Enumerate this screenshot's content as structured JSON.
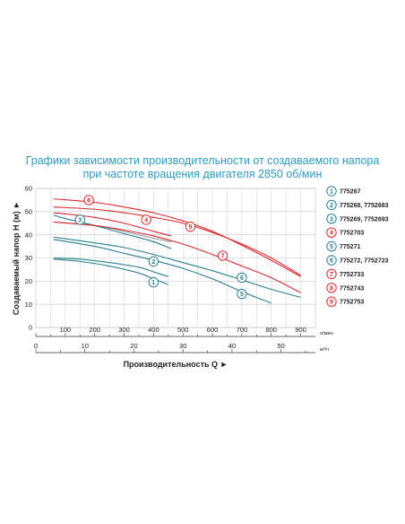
{
  "chart_data": {
    "type": "line",
    "title_lines": [
      "Графики зависимости производительности от создаваемого напора",
      "при частоте вращения двигателя 2850 об/мин"
    ],
    "ylabel": "Создаваемый напор Н (м)",
    "xlabel": "Производительность Q",
    "y_ticks": [
      "0",
      "10",
      "20",
      "30",
      "40",
      "50",
      "60"
    ],
    "ylim": [
      0,
      60
    ],
    "x_ticks_lmin": [
      "100",
      "200",
      "300",
      "400",
      "500",
      "600",
      "700",
      "800",
      "900"
    ],
    "x_unit_lmin": "л/мин",
    "xlim_lmin": [
      0,
      950
    ],
    "x_ticks_m3h": [
      "0",
      "10",
      "20",
      "30",
      "40",
      "50"
    ],
    "x_unit_m3h": "м³/ч",
    "grid": true,
    "legend_position": "right",
    "colors": {
      "red": "#d92a2f",
      "teal": "#2a7f8f",
      "gray": "#888888",
      "title": "#2e9bbf"
    },
    "series": [
      {
        "marker": "1",
        "name": "775267",
        "color": "teal",
        "x": [
          60,
          150,
          250,
          350,
          400,
          450
        ],
        "y": [
          29.5,
          28.5,
          26.5,
          23.5,
          21,
          18.5
        ]
      },
      {
        "marker": "2",
        "name": "775268, 7752683",
        "color": "teal",
        "x": [
          60,
          150,
          250,
          350,
          400,
          450
        ],
        "y": [
          30,
          29.5,
          28,
          26,
          24,
          22
        ]
      },
      {
        "marker": "3",
        "name": "775269, 7752693",
        "color": "teal",
        "x": [
          60,
          100,
          200,
          300,
          400,
          460
        ],
        "y": [
          48.5,
          47,
          44,
          40.5,
          37,
          34
        ]
      },
      {
        "marker": "4",
        "name": "7752703",
        "color": "red",
        "x": [
          60,
          100,
          200,
          300,
          400,
          460
        ],
        "y": [
          49.5,
          49,
          47.5,
          45,
          41.5,
          39.5
        ]
      },
      {
        "marker": "5",
        "name": "775271",
        "color": "teal",
        "x": [
          60,
          200,
          300,
          400,
          500,
          600,
          700,
          800
        ],
        "y": [
          38,
          35,
          32,
          29,
          25.5,
          21,
          15.5,
          10.5
        ]
      },
      {
        "marker": "6",
        "name": "775272, 7752723",
        "color": "teal",
        "x": [
          60,
          200,
          300,
          400,
          500,
          600,
          700,
          800,
          900
        ],
        "y": [
          39,
          36.5,
          34.5,
          31.5,
          28,
          24.5,
          20.5,
          16.5,
          13
        ]
      },
      {
        "marker": "7",
        "name": "7752733",
        "color": "red",
        "x": [
          60,
          200,
          300,
          400,
          500,
          600,
          700,
          800,
          900
        ],
        "y": [
          45.5,
          44,
          42,
          39.5,
          36,
          31.5,
          26.5,
          21.5,
          15
        ]
      },
      {
        "marker": "8",
        "name": "7752743",
        "color": "red",
        "x": [
          60,
          200,
          300,
          400,
          500,
          600,
          700,
          800,
          900
        ],
        "y": [
          55.5,
          54,
          52,
          49.5,
          46,
          41.5,
          35.5,
          29,
          22
        ]
      },
      {
        "marker": "9",
        "name": "7752753",
        "color": "red",
        "x": [
          60,
          200,
          300,
          400,
          500,
          600,
          700,
          800,
          900
        ],
        "y": [
          52,
          51,
          49.5,
          47.5,
          45,
          41,
          36,
          30,
          22.5
        ]
      }
    ],
    "marker_positions": [
      {
        "marker": "1",
        "x": 400,
        "y": 19.5
      },
      {
        "marker": "2",
        "x": 400,
        "y": 28.5
      },
      {
        "marker": "3",
        "x": 150,
        "y": 46.5
      },
      {
        "marker": "4",
        "x": 375,
        "y": 46.5
      },
      {
        "marker": "5",
        "x": 700,
        "y": 14.5
      },
      {
        "marker": "6",
        "x": 700,
        "y": 21.5
      },
      {
        "marker": "7",
        "x": 635,
        "y": 31
      },
      {
        "marker": "8",
        "x": 180,
        "y": 55
      },
      {
        "marker": "9",
        "x": 525,
        "y": 43.5
      }
    ],
    "extra_gray": {
      "x": [
        60,
        200,
        300,
        400,
        460
      ],
      "y": [
        45.5,
        44,
        41.5,
        38.5,
        37
      ]
    }
  }
}
